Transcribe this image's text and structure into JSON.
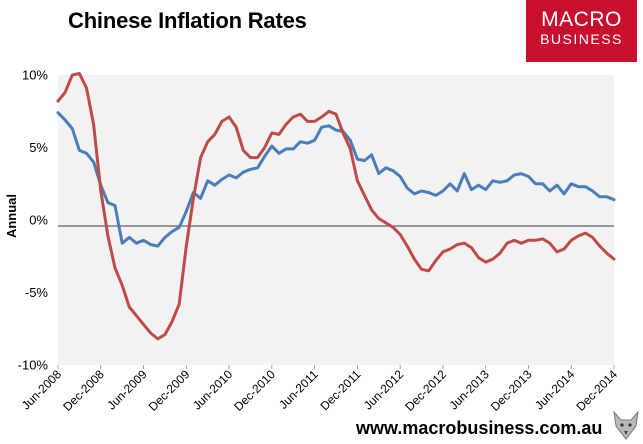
{
  "title": "Chinese Inflation Rates",
  "logo": {
    "line1": "MACRO",
    "line2": "BUSINESS"
  },
  "website": "www.macrobusiness.com.au",
  "colors": {
    "series1": "#4a7ebb",
    "series2": "#be4b48",
    "zero_line": "#000000",
    "plot_bg": "#f2f2f2",
    "logo_bg": "#c8102e"
  },
  "chart_data": {
    "type": "line",
    "ylabel": "Annual",
    "ylim": [
      -10,
      10
    ],
    "yticks": [
      "10%",
      "5%",
      "0%",
      "-5%",
      "-10%"
    ],
    "ytick_values": [
      10,
      5,
      0,
      -5,
      -10
    ],
    "xlim": [
      0,
      78
    ],
    "xticks": [
      "Jun-2008",
      "Dec-2008",
      "Jun-2009",
      "Dec-2009",
      "Jun-2010",
      "Dec-2010",
      "Jun-2011",
      "Dec-2011",
      "Jun-2012",
      "Dec-2012",
      "Jun-2013",
      "Dec-2013",
      "Jun-2014",
      "Dec-2014"
    ],
    "xtick_months": [
      0,
      6,
      12,
      18,
      24,
      30,
      36,
      42,
      48,
      54,
      60,
      66,
      72,
      78
    ],
    "grid": false,
    "series": [
      {
        "color": "#4a7ebb",
        "values": [
          7.4,
          6.9,
          6.3,
          4.8,
          4.6,
          4.0,
          2.4,
          1.2,
          1.0,
          -1.6,
          -1.2,
          -1.6,
          -1.4,
          -1.7,
          -1.8,
          -1.2,
          -0.8,
          -0.5,
          0.6,
          1.9,
          1.5,
          2.7,
          2.4,
          2.8,
          3.1,
          2.9,
          3.3,
          3.5,
          3.6,
          4.4,
          5.1,
          4.6,
          4.9,
          4.9,
          5.4,
          5.3,
          5.5,
          6.4,
          6.5,
          6.2,
          6.1,
          5.5,
          4.2,
          4.1,
          4.5,
          3.2,
          3.6,
          3.4,
          3.0,
          2.2,
          1.8,
          2.0,
          1.9,
          1.7,
          2.0,
          2.5,
          2.0,
          3.2,
          2.1,
          2.4,
          2.1,
          2.7,
          2.6,
          2.7,
          3.1,
          3.2,
          3.0,
          2.5,
          2.5,
          2.0,
          2.4,
          1.8,
          2.5,
          2.3,
          2.3,
          2.0,
          1.6,
          1.6,
          1.4
        ]
      },
      {
        "color": "#be4b48",
        "values": [
          8.2,
          8.8,
          10.0,
          10.1,
          9.1,
          6.6,
          2.0,
          -1.1,
          -3.3,
          -4.5,
          -6.0,
          -6.6,
          -7.2,
          -7.8,
          -8.2,
          -7.9,
          -7.0,
          -5.8,
          -1.8,
          1.5,
          4.3,
          5.4,
          5.9,
          6.8,
          7.1,
          6.4,
          4.8,
          4.3,
          4.3,
          5.0,
          6.0,
          5.9,
          6.6,
          7.1,
          7.3,
          6.8,
          6.8,
          7.1,
          7.5,
          7.3,
          6.0,
          4.9,
          2.7,
          1.7,
          0.7,
          0.1,
          -0.2,
          -0.5,
          -1.0,
          -1.8,
          -2.7,
          -3.4,
          -3.5,
          -2.8,
          -2.2,
          -2.0,
          -1.7,
          -1.6,
          -1.9,
          -2.6,
          -2.9,
          -2.7,
          -2.3,
          -1.6,
          -1.4,
          -1.6,
          -1.4,
          -1.4,
          -1.3,
          -1.6,
          -2.2,
          -2.0,
          -1.4,
          -1.1,
          -0.9,
          -1.2,
          -1.8,
          -2.3,
          -2.7
        ]
      }
    ]
  }
}
